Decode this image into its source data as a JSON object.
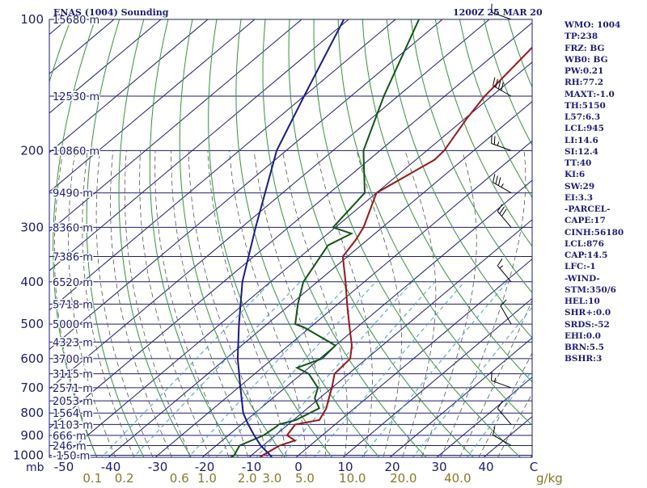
{
  "title_left": "ENAS (1004) Sounding",
  "title_right": "1200Z 25 MAR 20",
  "stats": [
    "WMO: 1004",
    "TP:238",
    "FRZ: BG",
    "WB0: BG",
    "PW:0.21",
    "RH:77.2",
    "MAXT:-1.0",
    "TH:5150",
    "L57:6.3",
    "LCL:945",
    "LI:14.6",
    "SI:12.4",
    "TT:40",
    "KI:6",
    "SW:29",
    "EI:3.3",
    "-PARCEL-",
    "CAPE:17",
    "CINH:56180",
    "LCL:876",
    "CAP:14.5",
    "LFC:-1",
    "-WIND-",
    "STM:350/6",
    "HEL:10",
    "SHR+:0.0",
    "SRDS:-52",
    "EHI:0.0",
    "BRN:5.5",
    "BSHR:3"
  ],
  "colors": {
    "isobar": "#1a1a8c",
    "isotherm": "#1a1a8c",
    "dry_adiabat": "#2e9e2e",
    "moist_adiabat": "#555555",
    "mixing_ratio": "#3aa7d6",
    "temperature": "#aa1111",
    "dewpoint": "#0d5a0d",
    "parcel": "#1a1a99",
    "text_blue": "#1a1a8c",
    "text_olive": "#8c7a1a"
  },
  "chart_data": {
    "type": "line",
    "title": "ENAS (1004) Sounding",
    "subtitle": "1200Z 25 MAR 20",
    "pressure_unit_label": "mb",
    "mixing_ratio_unit_label": "g/kg",
    "pressure_ticks": [
      100,
      200,
      300,
      400,
      500,
      600,
      700,
      800,
      900,
      1000
    ],
    "pressure_tick_labels": [
      "100",
      "200",
      "300",
      "400",
      "500",
      "600",
      "700",
      "800",
      "900",
      "1000"
    ],
    "temperature_ticks": [
      -50,
      -40,
      -30,
      -20,
      -10,
      0,
      10,
      20,
      30,
      40
    ],
    "temperature_tick_labels": [
      "-50",
      "-40",
      "-30",
      "-20",
      "-10",
      "0",
      "10",
      "20",
      "30",
      "40"
    ],
    "temperature_corner_label": "C",
    "mixing_ratio_ticks": [
      0.1,
      0.2,
      0.6,
      1.0,
      2.0,
      3.0,
      5.0,
      10.0,
      20.0,
      40.0
    ],
    "mixing_ratio_tick_labels": [
      "0.1",
      "0.2",
      "0.6",
      "1.0",
      "2.0",
      "3.0",
      "5.0",
      "10.0",
      "20.0",
      "40.0"
    ],
    "height_labels": [
      {
        "p": 100,
        "text": "15680 m"
      },
      {
        "p": 150,
        "text": "12530 m"
      },
      {
        "p": 200,
        "text": "10860 m"
      },
      {
        "p": 250,
        "text": "9490 m"
      },
      {
        "p": 300,
        "text": "8360 m"
      },
      {
        "p": 350,
        "text": "7386 m"
      },
      {
        "p": 400,
        "text": "6520 m"
      },
      {
        "p": 450,
        "text": "5718 m"
      },
      {
        "p": 500,
        "text": "5000 m"
      },
      {
        "p": 550,
        "text": "4323 m"
      },
      {
        "p": 600,
        "text": "3700 m"
      },
      {
        "p": 650,
        "text": "3115 m"
      },
      {
        "p": 700,
        "text": "2571 m"
      },
      {
        "p": 750,
        "text": "2053 m"
      },
      {
        "p": 800,
        "text": "1564 m"
      },
      {
        "p": 850,
        "text": "1103 m"
      },
      {
        "p": 900,
        "text": "666 m"
      },
      {
        "p": 950,
        "text": "246 m"
      },
      {
        "p": 1000,
        "text": "-150 m"
      }
    ],
    "series": [
      {
        "name": "Temperature",
        "points": [
          [
            1013,
            -7.7
          ],
          [
            1000,
            -7.6
          ],
          [
            950,
            -6.5
          ],
          [
            925,
            -4.5
          ],
          [
            900,
            -7.5
          ],
          [
            850,
            -8.5
          ],
          [
            830,
            -4.5
          ],
          [
            780,
            -6.0
          ],
          [
            740,
            -8.0
          ],
          [
            700,
            -10.0
          ],
          [
            650,
            -13.0
          ],
          [
            600,
            -13.5
          ],
          [
            560,
            -16.5
          ],
          [
            500,
            -22.5
          ],
          [
            450,
            -28.0
          ],
          [
            400,
            -34.0
          ],
          [
            350,
            -41.0
          ],
          [
            320,
            -42.5
          ],
          [
            300,
            -44.0
          ],
          [
            250,
            -50.0
          ],
          [
            210,
            -46.0
          ],
          [
            200,
            -46.3
          ],
          [
            170,
            -49.5
          ],
          [
            150,
            -51.5
          ],
          [
            100,
            -55.0
          ]
        ]
      },
      {
        "name": "Dewpoint",
        "points": [
          [
            1013,
            -14.0
          ],
          [
            1000,
            -13.7
          ],
          [
            950,
            -15.0
          ],
          [
            900,
            -12.5
          ],
          [
            860,
            -12.0
          ],
          [
            850,
            -12.0
          ],
          [
            830,
            -9.5
          ],
          [
            780,
            -7.5
          ],
          [
            740,
            -11.0
          ],
          [
            700,
            -13.0
          ],
          [
            650,
            -18.5
          ],
          [
            630,
            -22.5
          ],
          [
            600,
            -19.5
          ],
          [
            560,
            -20.0
          ],
          [
            510,
            -31.0
          ],
          [
            500,
            -34.0
          ],
          [
            450,
            -38.5
          ],
          [
            400,
            -43.0
          ],
          [
            330,
            -47.0
          ],
          [
            310,
            -45.0
          ],
          [
            300,
            -50.5
          ],
          [
            250,
            -52.5
          ],
          [
            200,
            -63.5
          ],
          [
            150,
            -73.0
          ],
          [
            100,
            -85.0
          ]
        ]
      },
      {
        "name": "Parcel",
        "points": [
          [
            1013,
            -5.0
          ],
          [
            1000,
            -6.0
          ],
          [
            950,
            -10.5
          ],
          [
            900,
            -14.5
          ],
          [
            850,
            -18.5
          ],
          [
            800,
            -22.5
          ],
          [
            700,
            -29.5
          ],
          [
            600,
            -37.5
          ],
          [
            500,
            -46.0
          ],
          [
            400,
            -56.0
          ],
          [
            300,
            -67.0
          ],
          [
            200,
            -82.0
          ],
          [
            150,
            -90.0
          ],
          [
            100,
            -101.0
          ]
        ]
      }
    ],
    "wind_barbs": [
      {
        "p": 100,
        "dir": 290,
        "spd": 15
      },
      {
        "p": 150,
        "dir": 300,
        "spd": 40
      },
      {
        "p": 200,
        "dir": 290,
        "spd": 25
      },
      {
        "p": 250,
        "dir": 300,
        "spd": 35
      },
      {
        "p": 300,
        "dir": 320,
        "spd": 30
      },
      {
        "p": 400,
        "dir": 320,
        "spd": 15
      },
      {
        "p": 500,
        "dir": 330,
        "spd": 10
      },
      {
        "p": 700,
        "dir": 290,
        "spd": 15
      },
      {
        "p": 850,
        "dir": 320,
        "spd": 10
      },
      {
        "p": 950,
        "dir": 300,
        "spd": 10
      }
    ]
  }
}
